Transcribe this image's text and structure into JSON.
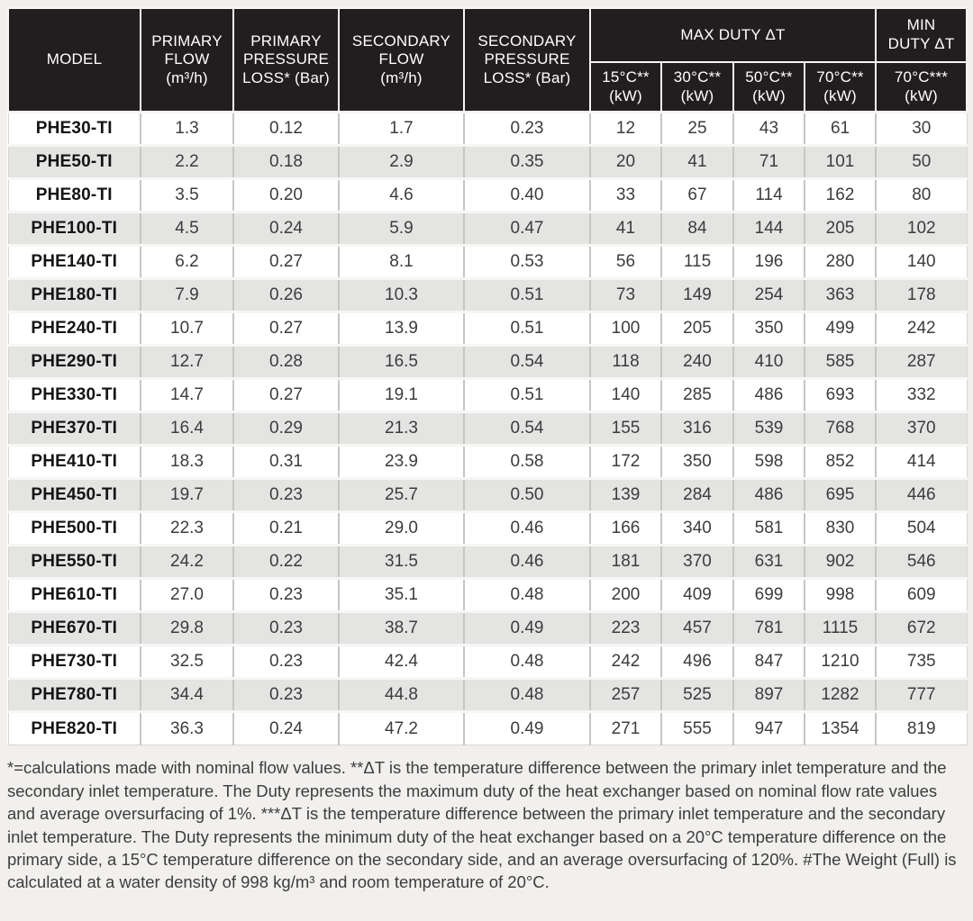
{
  "table": {
    "headers": {
      "model": "MODEL",
      "primary_flow": "PRIMARY\nFLOW\n(m³/h)",
      "primary_pressure_loss": "PRIMARY\nPRESSURE\nLOSS* (Bar)",
      "secondary_flow": "SECONDARY\nFLOW\n(m³/h)",
      "secondary_pressure_loss": "SECONDARY\nPRESSURE\nLOSS* (Bar)",
      "max_duty_group": "MAX DUTY ΔT",
      "min_duty_group": "MIN\nDUTY ΔT",
      "sub": [
        "15°C**\n(kW)",
        "30°C**\n(kW)",
        "50°C**\n(kW)",
        "70°C**\n(kW)",
        "70°C***\n(kW)"
      ]
    },
    "rows": [
      [
        "PHE30-TI",
        "1.3",
        "0.12",
        "1.7",
        "0.23",
        "12",
        "25",
        "43",
        "61",
        "30"
      ],
      [
        "PHE50-TI",
        "2.2",
        "0.18",
        "2.9",
        "0.35",
        "20",
        "41",
        "71",
        "101",
        "50"
      ],
      [
        "PHE80-TI",
        "3.5",
        "0.20",
        "4.6",
        "0.40",
        "33",
        "67",
        "114",
        "162",
        "80"
      ],
      [
        "PHE100-TI",
        "4.5",
        "0.24",
        "5.9",
        "0.47",
        "41",
        "84",
        "144",
        "205",
        "102"
      ],
      [
        "PHE140-TI",
        "6.2",
        "0.27",
        "8.1",
        "0.53",
        "56",
        "115",
        "196",
        "280",
        "140"
      ],
      [
        "PHE180-TI",
        "7.9",
        "0.26",
        "10.3",
        "0.51",
        "73",
        "149",
        "254",
        "363",
        "178"
      ],
      [
        "PHE240-TI",
        "10.7",
        "0.27",
        "13.9",
        "0.51",
        "100",
        "205",
        "350",
        "499",
        "242"
      ],
      [
        "PHE290-TI",
        "12.7",
        "0.28",
        "16.5",
        "0.54",
        "118",
        "240",
        "410",
        "585",
        "287"
      ],
      [
        "PHE330-TI",
        "14.7",
        "0.27",
        "19.1",
        "0.51",
        "140",
        "285",
        "486",
        "693",
        "332"
      ],
      [
        "PHE370-TI",
        "16.4",
        "0.29",
        "21.3",
        "0.54",
        "155",
        "316",
        "539",
        "768",
        "370"
      ],
      [
        "PHE410-TI",
        "18.3",
        "0.31",
        "23.9",
        "0.58",
        "172",
        "350",
        "598",
        "852",
        "414"
      ],
      [
        "PHE450-TI",
        "19.7",
        "0.23",
        "25.7",
        "0.50",
        "139",
        "284",
        "486",
        "695",
        "446"
      ],
      [
        "PHE500-TI",
        "22.3",
        "0.21",
        "29.0",
        "0.46",
        "166",
        "340",
        "581",
        "830",
        "504"
      ],
      [
        "PHE550-TI",
        "24.2",
        "0.22",
        "31.5",
        "0.46",
        "181",
        "370",
        "631",
        "902",
        "546"
      ],
      [
        "PHE610-TI",
        "27.0",
        "0.23",
        "35.1",
        "0.48",
        "200",
        "409",
        "699",
        "998",
        "609"
      ],
      [
        "PHE670-TI",
        "29.8",
        "0.23",
        "38.7",
        "0.49",
        "223",
        "457",
        "781",
        "1115",
        "672"
      ],
      [
        "PHE730-TI",
        "32.5",
        "0.23",
        "42.4",
        "0.48",
        "242",
        "496",
        "847",
        "1210",
        "735"
      ],
      [
        "PHE780-TI",
        "34.4",
        "0.23",
        "44.8",
        "0.48",
        "257",
        "525",
        "897",
        "1282",
        "777"
      ],
      [
        "PHE820-TI",
        "36.3",
        "0.24",
        "47.2",
        "0.49",
        "271",
        "555",
        "947",
        "1354",
        "819"
      ]
    ]
  },
  "colors": {
    "header_bg": "#221e1f",
    "header_text": "#ffffff",
    "row_alt_bg": "#e4e4e3",
    "grid_line": "#c7c6c5",
    "page_bg": "#f1f0ee"
  },
  "footnote": "*=calculations made with nominal flow values. **ΔT is the temperature difference between the primary inlet temperature and the secondary inlet temperature. The Duty represents the maximum duty of the heat exchanger based on nominal flow rate values and average oversurfacing of 1%. ***ΔT is the temperature difference between the primary inlet temperature and the secondary inlet temperature. The Duty represents the minimum duty of the heat exchanger based on a 20°C temperature difference on the primary side, a 15°C temperature difference on the secondary side, and an average oversurfacing of 120%. #The Weight (Full) is calculated at a water density of 998 kg/m³ and room temperature of 20°C."
}
